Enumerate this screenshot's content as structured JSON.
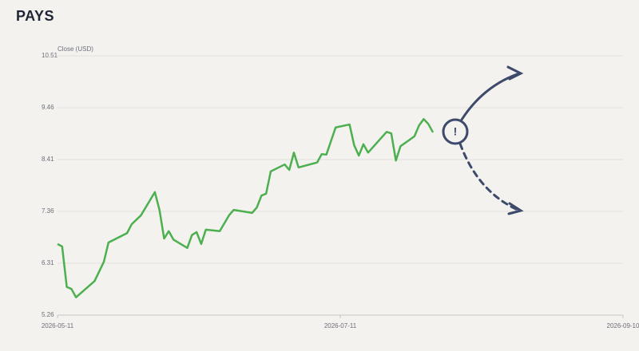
{
  "chart_data": {
    "type": "line",
    "title": "PAYS",
    "y_label": "Close (USD)",
    "annotation": "!",
    "x": [
      "2026-05-11",
      "2026-05-12",
      "2026-05-13",
      "2026-05-14",
      "2026-05-15",
      "2026-05-19",
      "2026-05-21",
      "2026-05-22",
      "2026-05-26",
      "2026-05-27",
      "2026-05-29",
      "2026-06-01",
      "2026-06-02",
      "2026-06-03",
      "2026-06-04",
      "2026-06-05",
      "2026-06-08",
      "2026-06-09",
      "2026-06-10",
      "2026-06-11",
      "2026-06-12",
      "2026-06-15",
      "2026-06-17",
      "2026-06-18",
      "2026-06-22",
      "2026-06-23",
      "2026-06-24",
      "2026-06-25",
      "2026-06-26",
      "2026-06-29",
      "2026-06-30",
      "2026-07-01",
      "2026-07-02",
      "2026-07-06",
      "2026-07-07",
      "2026-07-08",
      "2026-07-10",
      "2026-07-13",
      "2026-07-14",
      "2026-07-15",
      "2026-07-16",
      "2026-07-17",
      "2026-07-21",
      "2026-07-22",
      "2026-07-23",
      "2026-07-24",
      "2026-07-27",
      "2026-07-28",
      "2026-07-29",
      "2026-07-30",
      "2026-07-31"
    ],
    "series": [
      {
        "color": "#4caf50",
        "values": [
          6.7,
          6.65,
          5.83,
          5.79,
          5.62,
          5.95,
          6.34,
          6.73,
          6.92,
          7.1,
          7.28,
          7.75,
          7.39,
          6.81,
          6.96,
          6.79,
          6.62,
          6.88,
          6.94,
          6.7,
          6.99,
          6.96,
          7.28,
          7.39,
          7.33,
          7.44,
          7.68,
          7.72,
          8.17,
          8.31,
          8.2,
          8.55,
          8.25,
          8.35,
          8.52,
          8.51,
          9.06,
          9.12,
          8.7,
          8.49,
          8.72,
          8.55,
          8.97,
          8.94,
          8.39,
          8.68,
          8.88,
          9.1,
          9.23,
          9.13,
          8.96
        ]
      }
    ],
    "xlim": [
      "2026-05-11",
      "2026-09-10"
    ],
    "xticks": [
      "2026-05-11",
      "2026-07-11",
      "2026-09-10"
    ],
    "ylim": [
      5.26,
      10.51
    ],
    "yticks": [
      5.26,
      6.31,
      7.36,
      8.41,
      9.46,
      10.51
    ],
    "grid": true
  }
}
